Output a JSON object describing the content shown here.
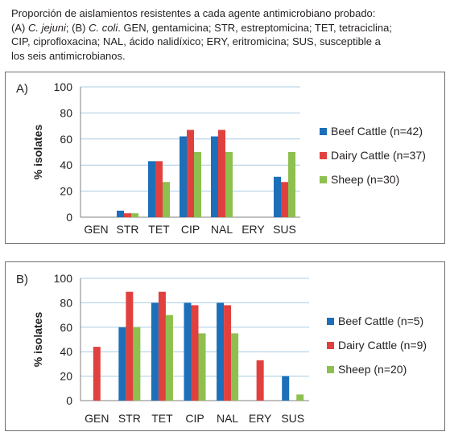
{
  "caption": {
    "line1": "Proporción de aislamientos resistentes a cada agente antimicrobiano probado:",
    "line2_a": "(A) ",
    "line2_a_italic": "C. jejuni",
    "line2_b": "; (B) ",
    "line2_b_italic": "C. coli",
    "line2_c": ". GEN, gentamicina; STR, estreptomicina; TET, tetraciclina;",
    "line3": "CIP, ciprofloxacina; NAL, ácido nalidíxico; ERY, eritromicina; SUS, susceptible a",
    "line4": "los seis antimicrobianos."
  },
  "colors": {
    "beef": "#1c6fb8",
    "dairy": "#e0413f",
    "sheep": "#8dc04f",
    "grid": "#a9cce3",
    "axis": "#808080"
  },
  "chart_data": [
    {
      "type": "bar",
      "panel_label": "A)",
      "ylabel": "% isolates",
      "xlabel": "",
      "categories": [
        "GEN",
        "STR",
        "TET",
        "CIP",
        "NAL",
        "ERY",
        "SUS"
      ],
      "ylim": [
        0,
        100
      ],
      "yticks": [
        0,
        20,
        40,
        60,
        80,
        100
      ],
      "grid": true,
      "legend_position": "right",
      "series": [
        {
          "name": "Beef Cattle (n=42)",
          "values": [
            0,
            5,
            43,
            62,
            62,
            0,
            31
          ]
        },
        {
          "name": "Dairy Cattle (n=37)",
          "values": [
            0,
            3,
            43,
            67,
            67,
            0,
            27
          ]
        },
        {
          "name": "Sheep (n=30)",
          "values": [
            0,
            3,
            27,
            50,
            50,
            0,
            50
          ]
        }
      ]
    },
    {
      "type": "bar",
      "panel_label": "B)",
      "ylabel": "% isolates",
      "xlabel": "",
      "categories": [
        "GEN",
        "STR",
        "TET",
        "CIP",
        "NAL",
        "ERY",
        "SUS"
      ],
      "ylim": [
        0,
        100
      ],
      "yticks": [
        0,
        20,
        40,
        60,
        80,
        100
      ],
      "grid": true,
      "legend_position": "right",
      "series": [
        {
          "name": "Beef Cattle (n=5)",
          "values": [
            0,
            60,
            80,
            80,
            80,
            0,
            20
          ]
        },
        {
          "name": "Dairy Cattle (n=9)",
          "values": [
            44,
            89,
            89,
            78,
            78,
            33,
            0
          ]
        },
        {
          "name": "Sheep (n=20)",
          "values": [
            0,
            60,
            70,
            55,
            55,
            0,
            5
          ]
        }
      ]
    }
  ]
}
